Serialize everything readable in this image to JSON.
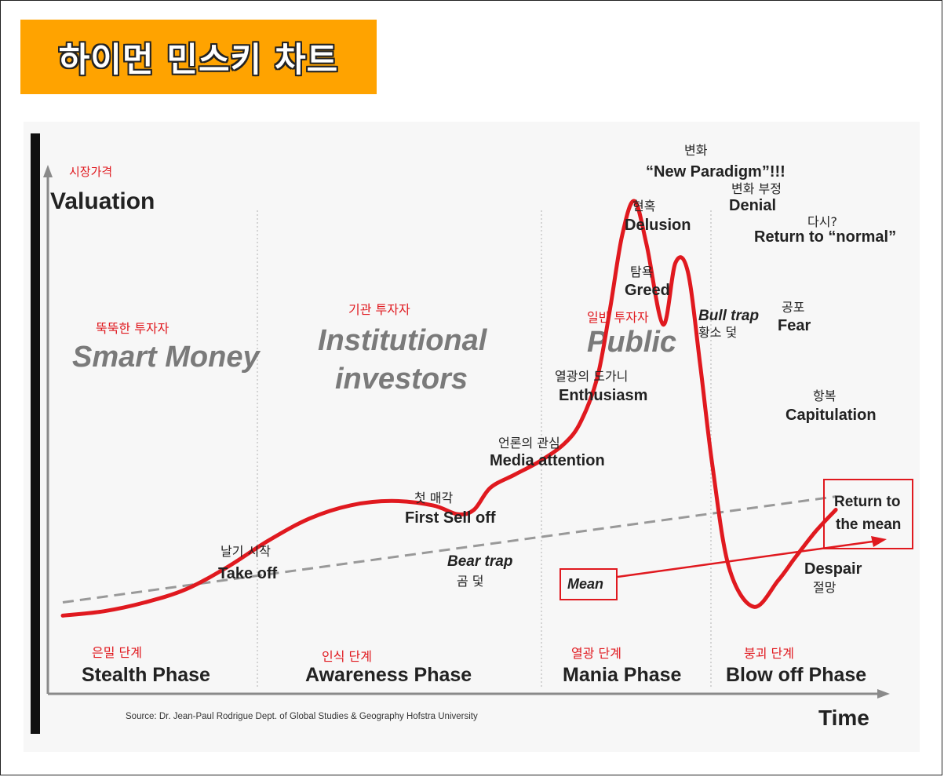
{
  "title": "하이먼 민스키 차트",
  "colors": {
    "banner": "#FFA300",
    "curve": "#E0191F",
    "mean": "#999999",
    "axis": "#888888"
  },
  "axes": {
    "y_kr": "시장가격",
    "y_en": "Valuation",
    "x_en": "Time"
  },
  "investors": [
    {
      "kr": "뚝뚝한 투자자",
      "en": "Smart Money"
    },
    {
      "kr": "기관 투자자",
      "en1": "Institutional",
      "en2": "investors"
    },
    {
      "kr": "일반 투자자",
      "en": "Public"
    }
  ],
  "phases": [
    {
      "kr": "은밀 단계",
      "en": "Stealth Phase"
    },
    {
      "kr": "인식 단계",
      "en": "Awareness Phase"
    },
    {
      "kr": "열광 단계",
      "en": "Mania Phase"
    },
    {
      "kr": "붕괴 단계",
      "en": "Blow off Phase"
    }
  ],
  "annotations": {
    "takeoff": {
      "kr": "날기 시작",
      "en": "Take off"
    },
    "first_sell": {
      "kr": "첫 매각",
      "en": "First Sell off"
    },
    "bear_trap": {
      "en": "Bear trap",
      "kr": "곰 덫"
    },
    "media": {
      "kr": "언론의 관심",
      "en": "Media attention"
    },
    "enthusiasm": {
      "kr": "열광의 도가니",
      "en": "Enthusiasm"
    },
    "greed": {
      "kr": "탐욕",
      "en": "Greed"
    },
    "delusion": {
      "kr": "현혹",
      "en": "Delusion"
    },
    "new_paradigm": {
      "kr": "변화",
      "en": "“New Paradigm”!!!"
    },
    "denial": {
      "kr": "변화 부정",
      "en": "Denial"
    },
    "return_normal": {
      "kr": "다시?",
      "en": "Return to “normal”"
    },
    "bull_trap": {
      "en": "Bull trap",
      "kr": "황소 덫"
    },
    "fear": {
      "kr": "공포",
      "en": "Fear"
    },
    "capitulation": {
      "kr": "항복",
      "en": "Capitulation"
    },
    "despair": {
      "en": "Despair",
      "kr": "절망"
    },
    "mean": "Mean",
    "return_mean_1": "Return to",
    "return_mean_2": "the mean"
  },
  "source": "Source: Dr. Jean-Paul Rodrigue Dept. of Global Studies & Geography Hofstra University",
  "chart_data": {
    "type": "line",
    "x_label": "Time",
    "y_label": "Valuation",
    "grid": false,
    "series": [
      {
        "name": "",
        "comment_units": "relative time 0-100 and relative valuation 0-100 (no numeric ticks printed)",
        "x": [
          0,
          5,
          10,
          15,
          20,
          25,
          30,
          35,
          40,
          45,
          48,
          50,
          52,
          55,
          58,
          61,
          63,
          65,
          66.5,
          68,
          69.5,
          71,
          73,
          74.5,
          76,
          77.5,
          79,
          81,
          84,
          87,
          89,
          91.5,
          94
        ],
        "y": [
          1,
          2,
          4,
          7,
          12,
          18,
          23,
          26,
          27,
          26,
          24,
          25,
          30,
          33,
          36,
          40,
          45,
          55,
          70,
          87,
          95,
          85,
          67,
          81,
          79,
          58,
          35,
          12,
          3,
          9,
          14,
          20,
          25
        ]
      },
      {
        "name": "Mean",
        "x": [
          0,
          94
        ],
        "y": [
          4,
          28
        ]
      }
    ]
  }
}
